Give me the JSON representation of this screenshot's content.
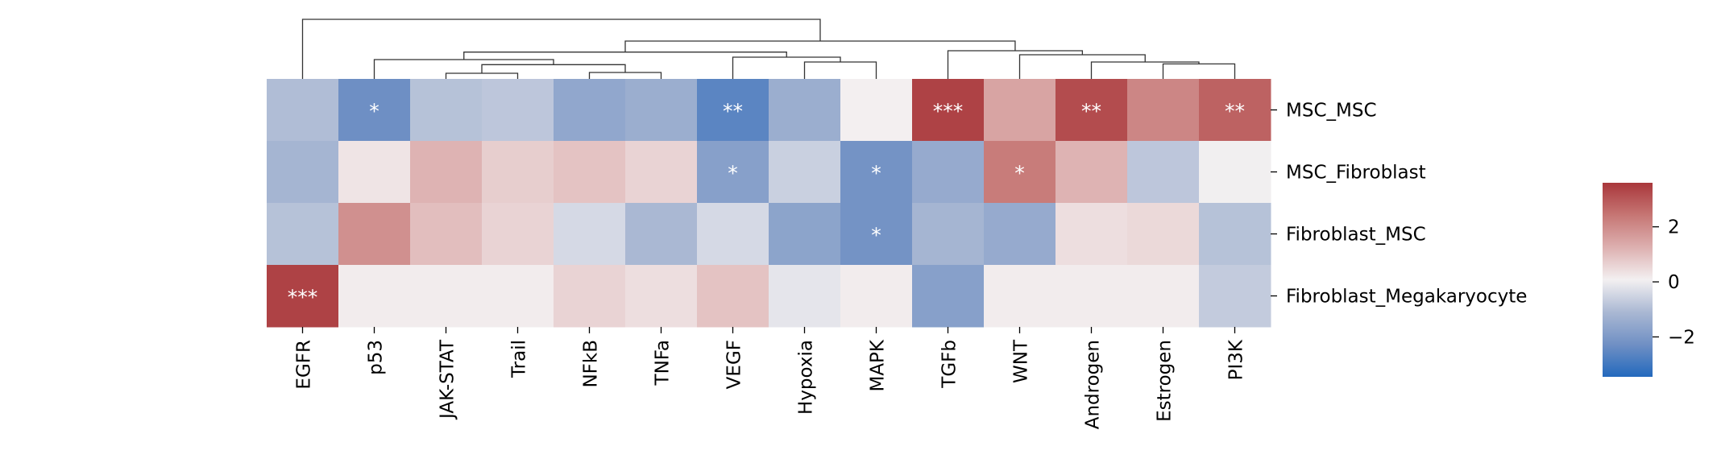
{
  "chart_data": {
    "type": "heatmap",
    "title": "",
    "xlabel": "",
    "ylabel": "",
    "columns": [
      "EGFR",
      "p53",
      "JAK-STAT",
      "Trail",
      "NFkB",
      "TNFa",
      "VEGF",
      "Hypoxia",
      "MAPK",
      "TGFb",
      "WNT",
      "Androgen",
      "Estrogen",
      "PI3K"
    ],
    "rows": [
      "MSC_MSC",
      "MSC_Fibroblast",
      "Fibroblast_MSC",
      "Fibroblast_Megakaryocyte"
    ],
    "values": [
      [
        -1.0,
        -2.3,
        -0.9,
        -0.8,
        -1.6,
        -1.4,
        -2.6,
        -1.4,
        0.1,
        3.4,
        1.5,
        3.2,
        2.1,
        2.8
      ],
      [
        -1.2,
        0.3,
        1.2,
        0.7,
        0.9,
        0.6,
        -1.8,
        -0.6,
        -2.2,
        -1.5,
        2.3,
        1.2,
        -0.8,
        0.05
      ],
      [
        -0.9,
        1.9,
        1.0,
        0.6,
        -0.4,
        -1.1,
        -0.4,
        -1.7,
        -2.2,
        -1.2,
        -1.5,
        0.4,
        0.5,
        -0.9
      ],
      [
        3.4,
        0.15,
        0.15,
        0.15,
        0.6,
        0.4,
        0.9,
        -0.15,
        0.15,
        -1.8,
        0.15,
        0.15,
        0.15,
        -0.7
      ]
    ],
    "annotations": [
      [
        "",
        "*",
        "",
        "",
        "",
        "",
        "**",
        "",
        "",
        "***",
        "",
        "**",
        "",
        "**"
      ],
      [
        "",
        "",
        "",
        "",
        "",
        "",
        "*",
        "",
        "*",
        "",
        "*",
        "",
        "",
        ""
      ],
      [
        "",
        "",
        "",
        "",
        "",
        "",
        "",
        "",
        "*",
        "",
        "",
        "",
        "",
        ""
      ],
      [
        "***",
        "",
        "",
        "",
        "",
        "",
        "",
        "",
        "",
        "",
        "",
        "",
        "",
        ""
      ]
    ],
    "colormap": "vlag",
    "colormap_stops": [
      "#2369bd",
      "#7090c4",
      "#aab8d3",
      "#f3f0f1",
      "#ddb0b0",
      "#c67674",
      "#a9373b"
    ],
    "value_range": [
      -3.45,
      3.6
    ],
    "colorbar": {
      "ticks": [
        2,
        0,
        -2
      ],
      "tick_labels": [
        "2",
        "0",
        "−2"
      ]
    },
    "column_dendrogram": {
      "merges": [
        [
          2,
          3,
          0.095
        ],
        [
          4,
          5,
          0.108
        ],
        [
          14,
          15,
          0.239
        ],
        [
          1,
          16,
          0.324
        ],
        [
          7,
          8,
          0.284
        ],
        [
          6,
          18,
          0.365
        ],
        [
          17,
          19,
          0.45
        ],
        [
          12,
          13,
          0.252
        ],
        [
          11,
          21,
          0.284
        ],
        [
          10,
          22,
          0.405
        ],
        [
          9,
          23,
          0.473
        ],
        [
          20,
          24,
          0.635
        ],
        [
          0,
          25,
          1.0
        ]
      ]
    }
  }
}
